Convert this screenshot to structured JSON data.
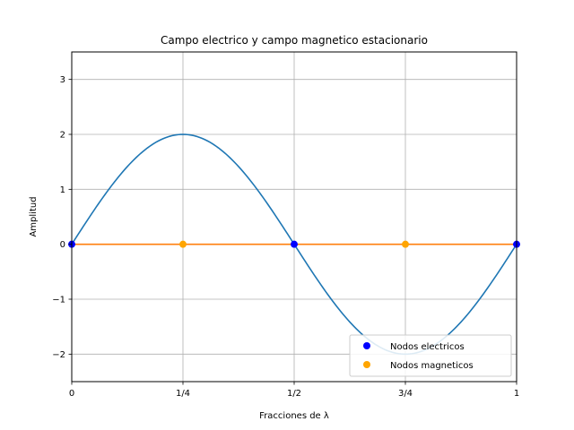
{
  "chart_data": {
    "type": "line",
    "title": "Campo electrico y campo magnetico estacionario",
    "xlabel": "Fracciones de λ",
    "ylabel": "Amplitud",
    "xlim": [
      0,
      1
    ],
    "ylim": [
      -2.5,
      3.5
    ],
    "xticks": [
      {
        "value": 0,
        "label": "0"
      },
      {
        "value": 0.25,
        "label": "1/4"
      },
      {
        "value": 0.5,
        "label": "1/2"
      },
      {
        "value": 0.75,
        "label": "3/4"
      },
      {
        "value": 1,
        "label": "1"
      }
    ],
    "yticks": [
      {
        "value": -2,
        "label": "−2"
      },
      {
        "value": -1,
        "label": "−1"
      },
      {
        "value": 0,
        "label": "0"
      },
      {
        "value": 1,
        "label": "1"
      },
      {
        "value": 2,
        "label": "2"
      },
      {
        "value": 3,
        "label": "3"
      }
    ],
    "grid": true,
    "legend_position": "lower-right",
    "series": [
      {
        "kind": "line",
        "color": "#1f77b4",
        "function": "2*sin(2*pi*x)",
        "x": [
          0,
          0.05,
          0.1,
          0.15,
          0.2,
          0.25,
          0.3,
          0.35,
          0.4,
          0.45,
          0.5,
          0.55,
          0.6,
          0.65,
          0.7,
          0.75,
          0.8,
          0.85,
          0.9,
          0.95,
          1
        ],
        "y": [
          0,
          0.618,
          1.176,
          1.618,
          1.902,
          2,
          1.902,
          1.618,
          1.176,
          0.618,
          0,
          -0.618,
          -1.176,
          -1.618,
          -1.902,
          -2,
          -1.902,
          -1.618,
          -1.176,
          -0.618,
          0
        ]
      },
      {
        "kind": "line",
        "color": "#ff7f0e",
        "x": [
          0,
          1
        ],
        "y": [
          0,
          0
        ]
      },
      {
        "kind": "points",
        "name": "Nodos electricos",
        "color": "#0000ff",
        "x": [
          0,
          0.5,
          1
        ],
        "y": [
          0,
          0,
          0
        ]
      },
      {
        "kind": "points",
        "name": "Nodos magneticos",
        "color": "#ffa500",
        "x": [
          0.25,
          0.75
        ],
        "y": [
          0,
          0
        ]
      }
    ]
  }
}
